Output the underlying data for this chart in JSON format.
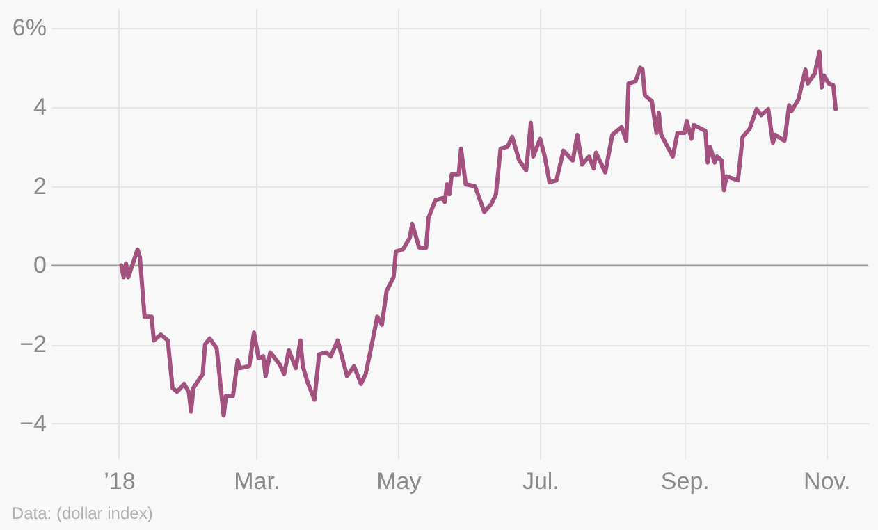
{
  "chart_data": {
    "type": "line",
    "x": [
      "2018-01-02",
      "2018-01-03",
      "2018-01-04",
      "2018-01-05",
      "2018-01-09",
      "2018-01-10",
      "2018-01-12",
      "2018-01-15",
      "2018-01-16",
      "2018-01-19",
      "2018-01-22",
      "2018-01-24",
      "2018-01-26",
      "2018-01-29",
      "2018-01-31",
      "2018-02-01",
      "2018-02-02",
      "2018-02-06",
      "2018-02-07",
      "2018-02-09",
      "2018-02-12",
      "2018-02-15",
      "2018-02-16",
      "2018-02-19",
      "2018-02-21",
      "2018-02-22",
      "2018-02-26",
      "2018-02-28",
      "2018-03-02",
      "2018-03-04",
      "2018-03-05",
      "2018-03-07",
      "2018-03-11",
      "2018-03-13",
      "2018-03-15",
      "2018-03-18",
      "2018-03-20",
      "2018-03-21",
      "2018-03-23",
      "2018-03-26",
      "2018-03-28",
      "2018-03-31",
      "2018-04-02",
      "2018-04-05",
      "2018-04-07",
      "2018-04-09",
      "2018-04-12",
      "2018-04-15",
      "2018-04-17",
      "2018-04-20",
      "2018-04-22",
      "2018-04-24",
      "2018-04-26",
      "2018-04-29",
      "2018-04-30",
      "2018-05-03",
      "2018-05-06",
      "2018-05-07",
      "2018-05-10",
      "2018-05-13",
      "2018-05-14",
      "2018-05-17",
      "2018-05-20",
      "2018-05-21",
      "2018-05-22",
      "2018-05-23",
      "2018-05-24",
      "2018-05-27",
      "2018-05-28",
      "2018-05-30",
      "2018-06-03",
      "2018-06-07",
      "2018-06-10",
      "2018-06-12",
      "2018-06-14",
      "2018-06-17",
      "2018-06-19",
      "2018-06-22",
      "2018-06-25",
      "2018-06-27",
      "2018-06-28",
      "2018-07-01",
      "2018-07-03",
      "2018-07-05",
      "2018-07-08",
      "2018-07-11",
      "2018-07-15",
      "2018-07-17",
      "2018-07-19",
      "2018-07-22",
      "2018-07-24",
      "2018-07-25",
      "2018-07-29",
      "2018-08-01",
      "2018-08-05",
      "2018-08-07",
      "2018-08-08",
      "2018-08-11",
      "2018-08-13",
      "2018-08-14",
      "2018-08-15",
      "2018-08-18",
      "2018-08-20",
      "2018-08-21",
      "2018-08-22",
      "2018-08-27",
      "2018-08-29",
      "2018-09-01",
      "2018-09-02",
      "2018-09-04",
      "2018-09-05",
      "2018-09-10",
      "2018-09-11",
      "2018-09-12",
      "2018-09-14",
      "2018-09-15",
      "2018-09-17",
      "2018-09-18",
      "2018-09-19",
      "2018-09-24",
      "2018-09-26",
      "2018-09-29",
      "2018-10-02",
      "2018-10-04",
      "2018-10-07",
      "2018-10-09",
      "2018-10-10",
      "2018-10-14",
      "2018-10-16",
      "2018-10-17",
      "2018-10-20",
      "2018-10-23",
      "2018-10-24",
      "2018-10-27",
      "2018-10-29",
      "2018-10-30",
      "2018-10-31",
      "2018-11-02",
      "2018-11-04",
      "2018-11-05"
    ],
    "series": [
      {
        "color": "#a3527f",
        "values": [
          0,
          -0.3,
          0.05,
          -0.3,
          0.4,
          0.2,
          -1.3,
          -1.3,
          -1.9,
          -1.75,
          -1.9,
          -3.1,
          -3.2,
          -3.0,
          -3.2,
          -3.7,
          -3.1,
          -2.75,
          -2.0,
          -1.85,
          -2.1,
          -3.8,
          -3.3,
          -3.3,
          -2.4,
          -2.6,
          -2.55,
          -1.7,
          -2.35,
          -2.3,
          -2.8,
          -2.2,
          -2.5,
          -2.75,
          -2.15,
          -2.6,
          -1.9,
          -2.55,
          -2.95,
          -3.4,
          -2.25,
          -2.2,
          -2.3,
          -1.9,
          -2.35,
          -2.8,
          -2.55,
          -3.0,
          -2.75,
          -1.9,
          -1.3,
          -1.5,
          -0.65,
          -0.3,
          0.35,
          0.4,
          0.7,
          1.05,
          0.45,
          0.45,
          1.2,
          1.65,
          1.7,
          1.6,
          2.05,
          1.8,
          2.3,
          2.3,
          2.95,
          2.05,
          2.0,
          1.35,
          1.55,
          1.8,
          2.95,
          3.0,
          3.25,
          2.65,
          2.4,
          3.6,
          2.75,
          3.2,
          2.75,
          2.1,
          2.15,
          2.9,
          2.65,
          3.3,
          2.55,
          2.75,
          2.45,
          2.85,
          2.35,
          3.3,
          3.5,
          3.15,
          4.6,
          4.65,
          5.0,
          4.95,
          4.3,
          4.15,
          3.35,
          3.85,
          3.3,
          2.75,
          3.35,
          3.35,
          3.65,
          3.2,
          3.55,
          3.4,
          2.6,
          3.0,
          2.6,
          2.75,
          2.65,
          1.9,
          2.25,
          2.15,
          3.25,
          3.45,
          3.95,
          3.8,
          3.95,
          3.1,
          3.3,
          3.15,
          4.05,
          3.9,
          4.2,
          4.95,
          4.6,
          4.85,
          5.4,
          4.5,
          4.8,
          4.6,
          4.55,
          3.95
        ]
      }
    ],
    "xlim": [
      "2017-12-03",
      "2018-11-19"
    ],
    "xticks": [
      {
        "value": "2018-01-01",
        "label": "’18"
      },
      {
        "value": "2018-03-01",
        "label": "Mar."
      },
      {
        "value": "2018-05-01",
        "label": "May"
      },
      {
        "value": "2018-07-01",
        "label": "Jul."
      },
      {
        "value": "2018-09-01",
        "label": "Sep."
      },
      {
        "value": "2018-11-01",
        "label": "Nov."
      }
    ],
    "ylim": [
      -4.9,
      6.5
    ],
    "yticks": [
      {
        "value": 6,
        "label": "6%"
      },
      4,
      2,
      0,
      -2,
      -4
    ],
    "ref_lines": [
      {
        "axis": "y",
        "value": 0,
        "color": "#9a9a9a"
      }
    ],
    "grid": true,
    "line_style": "solid",
    "annotations": [
      "Data: (dollar index)"
    ]
  }
}
